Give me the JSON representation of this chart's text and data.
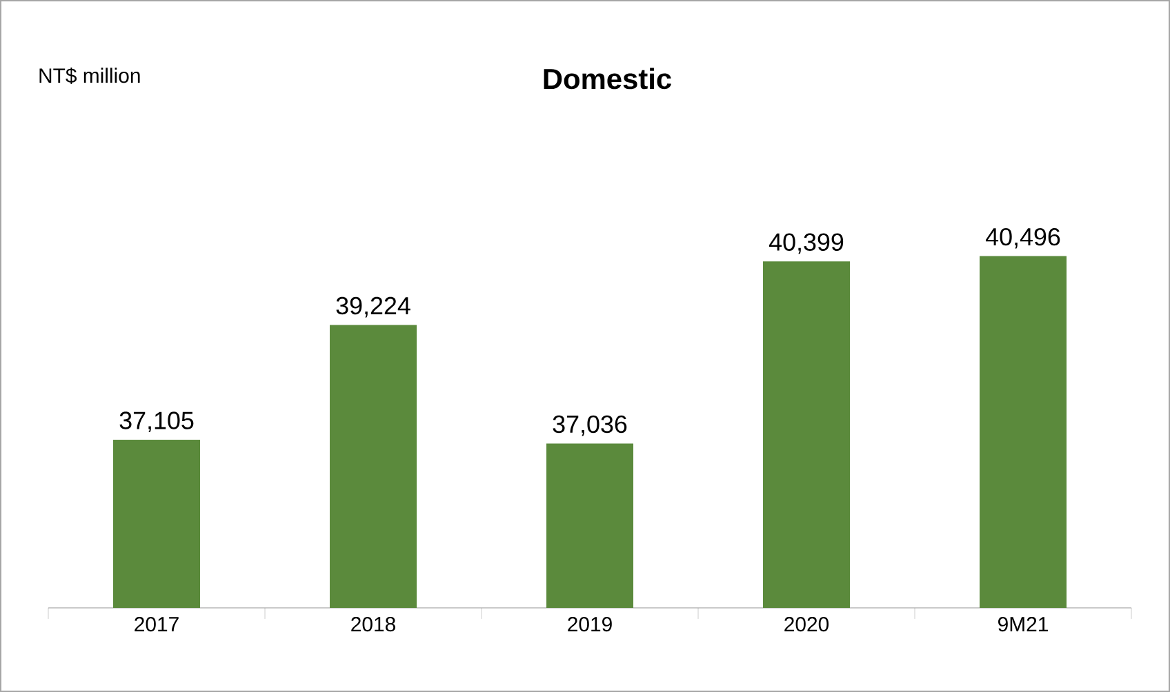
{
  "chart_data": {
    "type": "bar",
    "title": "Domestic",
    "ylabel": "NT$ million",
    "categories": [
      "2017",
      "2018",
      "2019",
      "2020",
      "9M21"
    ],
    "values": [
      37105,
      39224,
      37036,
      40399,
      40496
    ],
    "value_labels": [
      "37,105",
      "39,224",
      "37,036",
      "40,399",
      "40,496"
    ],
    "color": "#5b8a3c",
    "ylim": [
      34000,
      45200
    ]
  }
}
